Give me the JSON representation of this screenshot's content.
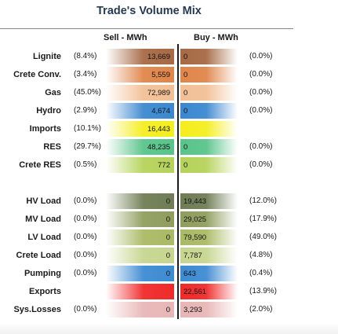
{
  "title": "Trade's Volume Mix",
  "headers": {
    "sell": "Sell - MWh",
    "buy": "Buy - MWh"
  },
  "chart_data": {
    "type": "table",
    "title": "Trade's Volume Mix",
    "columns": [
      "Sell - MWh",
      "Buy - MWh"
    ],
    "rows": [
      {
        "label": "Lignite",
        "sell_pct": "(8.4%)",
        "sell": "13,669",
        "buy": "0",
        "buy_pct": "(0.0%)",
        "sell_color": "#a66a45",
        "buy_color": "#a66a45"
      },
      {
        "label": "Crete Conv.",
        "sell_pct": "(3.4%)",
        "sell": "5,559",
        "buy": "0",
        "buy_pct": "(0.0%)",
        "sell_color": "#e0864a",
        "buy_color": "#e0864a"
      },
      {
        "label": "Gas",
        "sell_pct": "(45.0%)",
        "sell": "72,989",
        "buy": "0",
        "buy_pct": "(0.0%)",
        "sell_color": "#f2c096",
        "buy_color": "#f2c096"
      },
      {
        "label": "Hydro",
        "sell_pct": "(2.9%)",
        "sell": "4,674",
        "buy": "0",
        "buy_pct": "(0.0%)",
        "sell_color": "#3b88d0",
        "buy_color": "#3b88d0"
      },
      {
        "label": "Imports",
        "sell_pct": "(10.1%)",
        "sell": "16,443",
        "buy": "",
        "buy_pct": "",
        "sell_color": "#f4ee1e",
        "buy_color": "#f4ee1e"
      },
      {
        "label": "RES",
        "sell_pct": "(29.7%)",
        "sell": "48,235",
        "buy": "0",
        "buy_pct": "(0.0%)",
        "sell_color": "#58c48a",
        "buy_color": "#58c48a"
      },
      {
        "label": "Crete RES",
        "sell_pct": "(0.5%)",
        "sell": "772",
        "buy": "0",
        "buy_pct": "(0.0%)",
        "sell_color": "#b5d35a",
        "buy_color": "#b5d35a"
      },
      {
        "label": "HV Load",
        "sell_pct": "(0.0%)",
        "sell": "0",
        "buy": "19,443",
        "buy_pct": "(12.0%)",
        "sell_color": "#6f7d55",
        "buy_color": "#6f7d55"
      },
      {
        "label": "MV Load",
        "sell_pct": "(0.0%)",
        "sell": "0",
        "buy": "29,025",
        "buy_pct": "(17.9%)",
        "sell_color": "#8f9e5e",
        "buy_color": "#8f9e5e"
      },
      {
        "label": "LV Load",
        "sell_pct": "(0.0%)",
        "sell": "0",
        "buy": "79,590",
        "buy_pct": "(49.0%)",
        "sell_color": "#a9ba65",
        "buy_color": "#a9ba65"
      },
      {
        "label": "Crete Load",
        "sell_pct": "(0.0%)",
        "sell": "0",
        "buy": "7,787",
        "buy_pct": "(4.8%)",
        "sell_color": "#c6d68f",
        "buy_color": "#c6d68f"
      },
      {
        "label": "Pumping",
        "sell_pct": "(0.0%)",
        "sell": "0",
        "buy": "643",
        "buy_pct": "(0.4%)",
        "sell_color": "#3e8bd2",
        "buy_color": "#3e8bd2"
      },
      {
        "label": "Exports",
        "sell_pct": "",
        "sell": "",
        "buy": "22,561",
        "buy_pct": "(13.9%)",
        "sell_color": "#f02a2a",
        "buy_color": "#f02a2a"
      },
      {
        "label": "Sys.Losses",
        "sell_pct": "(0.0%)",
        "sell": "0",
        "buy": "3,293",
        "buy_pct": "(2.0%)",
        "sell_color": "#e8b6b6",
        "buy_color": "#e8b6b6"
      }
    ]
  }
}
